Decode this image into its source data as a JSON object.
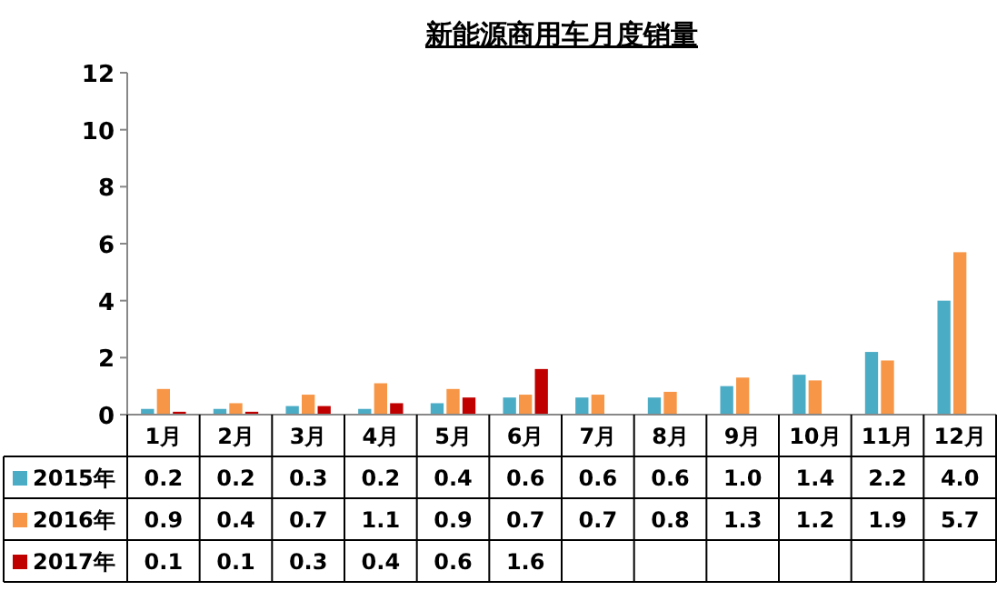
{
  "chart_data": {
    "type": "bar",
    "title": "新能源商用车月度销量",
    "categories": [
      "1月",
      "2月",
      "3月",
      "4月",
      "5月",
      "6月",
      "7月",
      "8月",
      "9月",
      "10月",
      "11月",
      "12月"
    ],
    "series": [
      {
        "name": "2015年",
        "color": "#4bacc6",
        "values": [
          0.2,
          0.2,
          0.3,
          0.2,
          0.4,
          0.6,
          0.6,
          0.6,
          1.0,
          1.4,
          2.2,
          4.0
        ],
        "value_labels": [
          "0.2",
          "0.2",
          "0.3",
          "0.2",
          "0.4",
          "0.6",
          "0.6",
          "0.6",
          "1.0",
          "1.4",
          "2.2",
          "4.0"
        ]
      },
      {
        "name": "2016年",
        "color": "#f79646",
        "values": [
          0.9,
          0.4,
          0.7,
          1.1,
          0.9,
          0.7,
          0.7,
          0.8,
          1.3,
          1.2,
          1.9,
          5.7
        ],
        "value_labels": [
          "0.9",
          "0.4",
          "0.7",
          "1.1",
          "0.9",
          "0.7",
          "0.7",
          "0.8",
          "1.3",
          "1.2",
          "1.9",
          "5.7"
        ]
      },
      {
        "name": "2017年",
        "color": "#c00000",
        "values": [
          0.1,
          0.1,
          0.3,
          0.4,
          0.6,
          1.6,
          null,
          null,
          null,
          null,
          null,
          null
        ],
        "value_labels": [
          "0.1",
          "0.1",
          "0.3",
          "0.4",
          "0.6",
          "1.6",
          null,
          null,
          null,
          null,
          null,
          null
        ]
      }
    ],
    "ylim": [
      0,
      12
    ],
    "yticks": [
      0,
      2,
      4,
      6,
      8,
      10,
      12
    ],
    "legend": "bottom left",
    "grid": false
  }
}
